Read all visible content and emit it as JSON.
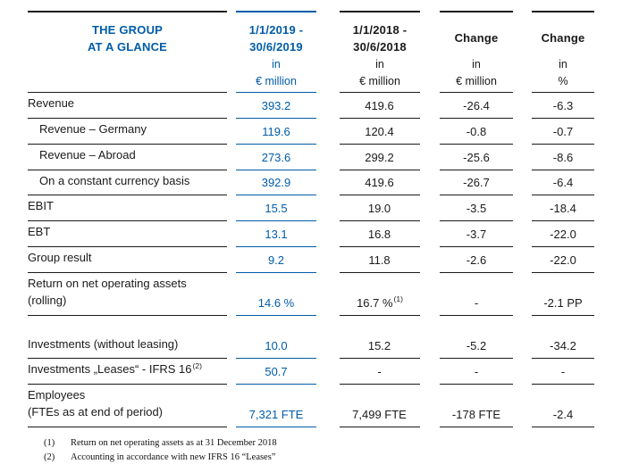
{
  "colors": {
    "accent_blue": "#005ca9",
    "text": "#1a1a1a"
  },
  "header": {
    "title_line1": "THE GROUP",
    "title_line2": "AT A GLANCE",
    "columns": [
      {
        "title1": "1/1/2019 -",
        "title2": "30/6/2019",
        "unit1": "in",
        "unit2": "€ million"
      },
      {
        "title1": "1/1/2018 -",
        "title2": "30/6/2018",
        "unit1": "in",
        "unit2": "€ million"
      },
      {
        "title1": "Change",
        "unit1": "in",
        "unit2": "€ million"
      },
      {
        "title1": "Change",
        "unit1": "in",
        "unit2": "%"
      }
    ]
  },
  "rows": [
    {
      "label1": "Revenue",
      "values": [
        "393.2",
        "419.6",
        "-26.4",
        "-6.3"
      ]
    },
    {
      "label1": "Revenue – Germany",
      "indent": true,
      "values": [
        "119.6",
        "120.4",
        "-0.8",
        "-0.7"
      ]
    },
    {
      "label1": "Revenue – Abroad",
      "indent": true,
      "values": [
        "273.6",
        "299.2",
        "-25.6",
        "-8.6"
      ]
    },
    {
      "label1": "On a constant currency basis",
      "indent": true,
      "values": [
        "392.9",
        "419.6",
        "-26.7",
        "-6.4"
      ]
    },
    {
      "label1": "EBIT",
      "values": [
        "15.5",
        "19.0",
        "-3.5",
        "-18.4"
      ]
    },
    {
      "label1": "EBT",
      "values": [
        "13.1",
        "16.8",
        "-3.7",
        "-22.0"
      ]
    },
    {
      "label1": "Group result",
      "values": [
        "9.2",
        "11.8",
        "-2.6",
        "-22.0"
      ]
    },
    {
      "label1": "Return on net operating assets",
      "label2": "(rolling)",
      "values": [
        "14.6 %",
        "16.7 %",
        "-",
        "-2.1 PP"
      ],
      "sup_2018": "(1)"
    },
    {
      "spacer": true
    },
    {
      "label1": "Investments (without leasing)",
      "values": [
        "10.0",
        "15.2",
        "-5.2",
        "-34.2"
      ]
    },
    {
      "label1": "Investments „Leases“ - IFRS 16",
      "label_sup": "(2)",
      "values": [
        "50.7",
        "-",
        "-",
        "-"
      ]
    },
    {
      "label1": "Employees",
      "label2": "(FTEs as at end of period)",
      "values": [
        "7,321 FTE",
        "7,499 FTE",
        "-178 FTE",
        "-2.4"
      ]
    }
  ],
  "footnotes": [
    {
      "num": "(1)",
      "text": "Return on net operating assets as at 31 December 2018"
    },
    {
      "num": "(2)",
      "text": "Accounting in accordance with new IFRS 16 “Leases”"
    }
  ]
}
